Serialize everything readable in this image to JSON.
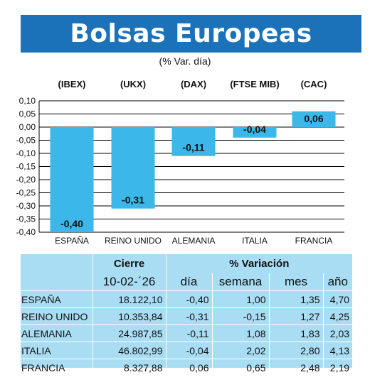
{
  "title": "Bolsas Europeas",
  "subtitle": "(% Var. día)",
  "colors": {
    "banner": "#1b72b9",
    "bar": "#3cb7ea",
    "table_bg": "#a9ddf4"
  },
  "chart_data": {
    "type": "bar",
    "index_labels": [
      "(IBEX)",
      "(UKX)",
      "(DAX)",
      "(FTSE MIB)",
      "(CAC)"
    ],
    "categories": [
      "ESPAÑA",
      "REINO UNIDO",
      "ALEMANIA",
      "ITALIA",
      "FRANCIA"
    ],
    "values": [
      -0.4,
      -0.31,
      -0.11,
      -0.04,
      0.06
    ],
    "value_labels": [
      "-0,40",
      "-0,31",
      "-0,11",
      "-0,04",
      "0,06"
    ],
    "ylim": [
      -0.4,
      0.1
    ],
    "yticks": [
      "0,10",
      "0,05",
      "0,00",
      "-0,05",
      "-0,10",
      "-0,15",
      "-0,20",
      "-0,25",
      "-0,30",
      "-0,35",
      "-0,40"
    ],
    "grid": true
  },
  "table": {
    "header_cierre": "Cierre",
    "header_variacion": "% Variación",
    "date": "10-02-´26",
    "columns": [
      "día",
      "semana",
      "mes",
      "año"
    ],
    "rows": [
      {
        "name": "ESPAÑA",
        "cierre": "18.122,10",
        "dia": "-0,40",
        "semana": "1,00",
        "mes": "1,35",
        "anio": "4,70"
      },
      {
        "name": "REINO UNIDO",
        "cierre": "10.353,84",
        "dia": "-0,31",
        "semana": "-0,15",
        "mes": "1,27",
        "anio": "4,25"
      },
      {
        "name": "ALEMANIA",
        "cierre": "24.987,85",
        "dia": "-0,11",
        "semana": "1,08",
        "mes": "1,83",
        "anio": "2,03"
      },
      {
        "name": "ITALIA",
        "cierre": "46.802,99",
        "dia": "-0,04",
        "semana": "2,02",
        "mes": "2,80",
        "anio": "4,13"
      },
      {
        "name": "FRANCIA",
        "cierre": "8.327,88",
        "dia": "0,06",
        "semana": "0,65",
        "mes": "2,48",
        "anio": "2,19"
      }
    ]
  }
}
